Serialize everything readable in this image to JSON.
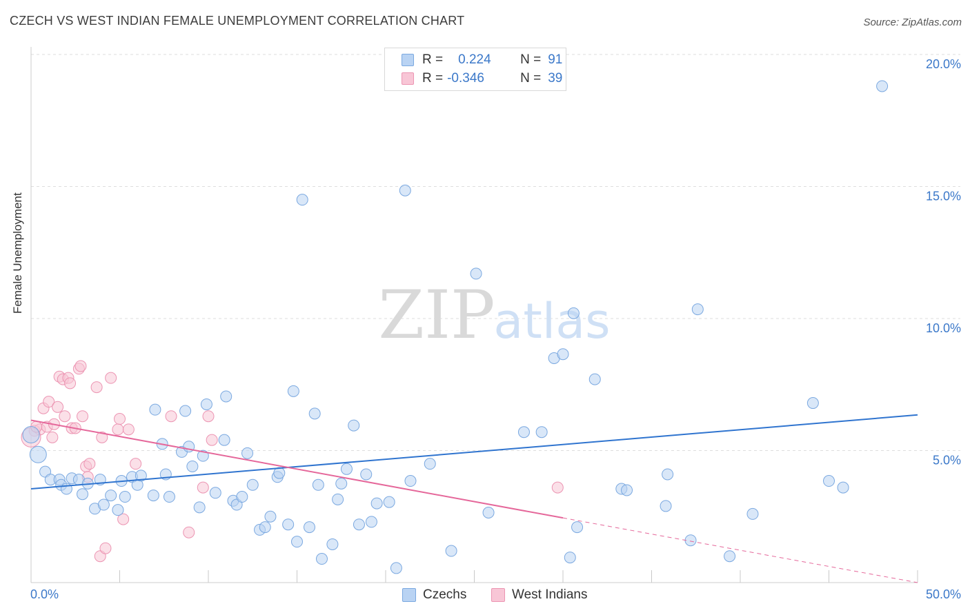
{
  "title": "CZECH VS WEST INDIAN FEMALE UNEMPLOYMENT CORRELATION CHART",
  "source": "Source: ZipAtlas.com",
  "watermark": {
    "zip": "ZIP",
    "atlas": "atlas"
  },
  "legend_top": {
    "czechs": {
      "r_label": "R =",
      "r_value": "0.224",
      "n_label": "N =",
      "n_value": "91"
    },
    "west_indians": {
      "r_label": "R =",
      "r_value": "-0.346",
      "n_label": "N =",
      "n_value": "39"
    }
  },
  "legend_bottom": {
    "czechs": "Czechs",
    "west_indians": "West Indians"
  },
  "x_axis": {
    "min_label": "0.0%",
    "max_label": "50.0%"
  },
  "colors": {
    "czech_fill": "#b9d3f3",
    "czech_stroke": "#7aa8e0",
    "czech_line": "#2f74cf",
    "wi_fill": "#f8c6d6",
    "wi_stroke": "#ec94b2",
    "wi_line": "#e5679a",
    "tick_text": "#3b78c9",
    "grid": "#dddddd"
  },
  "chart_data": {
    "type": "scatter",
    "title": "CZECH VS WEST INDIAN FEMALE UNEMPLOYMENT CORRELATION CHART",
    "xlabel": "",
    "ylabel": "Female Unemployment",
    "xlim": [
      0,
      50
    ],
    "ylim": [
      0,
      20
    ],
    "yticks": [
      5,
      10,
      15,
      20
    ],
    "ytick_labels": [
      "5.0%",
      "10.0%",
      "15.0%",
      "20.0%"
    ],
    "grid": true,
    "series": [
      {
        "name": "Czechs",
        "r": 0.224,
        "n": 91,
        "trend": {
          "x": [
            0,
            50
          ],
          "y": [
            3.55,
            6.35
          ]
        },
        "points": [
          [
            0.4,
            4.85
          ],
          [
            0.8,
            4.2
          ],
          [
            1.1,
            3.9
          ],
          [
            1.6,
            3.9
          ],
          [
            1.7,
            3.7
          ],
          [
            2.0,
            3.55
          ],
          [
            2.3,
            3.95
          ],
          [
            2.7,
            3.9
          ],
          [
            2.9,
            3.35
          ],
          [
            3.2,
            3.75
          ],
          [
            3.6,
            2.8
          ],
          [
            3.9,
            3.9
          ],
          [
            4.1,
            2.95
          ],
          [
            4.5,
            3.3
          ],
          [
            4.9,
            2.75
          ],
          [
            5.1,
            3.85
          ],
          [
            5.3,
            3.25
          ],
          [
            5.7,
            4.0
          ],
          [
            6.0,
            3.7
          ],
          [
            6.2,
            4.05
          ],
          [
            6.9,
            3.3
          ],
          [
            7.0,
            6.55
          ],
          [
            7.4,
            5.25
          ],
          [
            7.6,
            4.1
          ],
          [
            7.8,
            3.25
          ],
          [
            8.5,
            4.95
          ],
          [
            8.7,
            6.5
          ],
          [
            8.9,
            5.15
          ],
          [
            9.1,
            4.4
          ],
          [
            9.5,
            2.85
          ],
          [
            9.7,
            4.8
          ],
          [
            9.9,
            6.75
          ],
          [
            10.4,
            3.4
          ],
          [
            10.9,
            5.4
          ],
          [
            11.0,
            7.05
          ],
          [
            11.4,
            3.1
          ],
          [
            11.6,
            2.95
          ],
          [
            11.9,
            3.25
          ],
          [
            12.2,
            4.9
          ],
          [
            12.5,
            3.7
          ],
          [
            12.9,
            2.0
          ],
          [
            13.2,
            2.1
          ],
          [
            13.5,
            2.5
          ],
          [
            13.9,
            4.0
          ],
          [
            14.0,
            4.15
          ],
          [
            14.5,
            2.2
          ],
          [
            14.8,
            7.25
          ],
          [
            15.0,
            1.55
          ],
          [
            15.3,
            14.5
          ],
          [
            15.7,
            2.1
          ],
          [
            16.0,
            6.4
          ],
          [
            16.2,
            3.7
          ],
          [
            16.4,
            0.9
          ],
          [
            17.0,
            1.45
          ],
          [
            17.3,
            3.15
          ],
          [
            17.5,
            3.75
          ],
          [
            17.8,
            4.3
          ],
          [
            18.2,
            5.95
          ],
          [
            18.5,
            2.2
          ],
          [
            18.9,
            4.1
          ],
          [
            19.2,
            2.3
          ],
          [
            19.5,
            3.0
          ],
          [
            20.2,
            3.05
          ],
          [
            20.6,
            0.55
          ],
          [
            21.1,
            14.85
          ],
          [
            21.4,
            3.85
          ],
          [
            22.5,
            4.5
          ],
          [
            23.7,
            1.2
          ],
          [
            25.1,
            11.7
          ],
          [
            25.8,
            2.65
          ],
          [
            27.8,
            5.7
          ],
          [
            28.8,
            5.7
          ],
          [
            29.5,
            8.5
          ],
          [
            30.0,
            8.65
          ],
          [
            30.4,
            0.95
          ],
          [
            30.6,
            10.2
          ],
          [
            30.8,
            2.1
          ],
          [
            31.8,
            7.7
          ],
          [
            33.3,
            3.55
          ],
          [
            33.6,
            3.5
          ],
          [
            35.8,
            2.9
          ],
          [
            35.9,
            4.1
          ],
          [
            37.2,
            1.6
          ],
          [
            37.6,
            10.35
          ],
          [
            39.4,
            1.0
          ],
          [
            40.7,
            2.6
          ],
          [
            44.1,
            6.8
          ],
          [
            45.0,
            3.85
          ],
          [
            45.8,
            3.6
          ],
          [
            48.0,
            18.8
          ],
          [
            0.0,
            5.6
          ]
        ]
      },
      {
        "name": "West Indians",
        "r": -0.346,
        "n": 39,
        "trend": {
          "x": [
            0,
            30
          ],
          "y": [
            6.15,
            2.45
          ]
        },
        "trend_dashed": {
          "x": [
            30,
            50
          ],
          "y": [
            2.45,
            0.0
          ]
        },
        "points": [
          [
            0.2,
            5.75
          ],
          [
            0.5,
            5.8
          ],
          [
            0.7,
            6.6
          ],
          [
            0.9,
            5.9
          ],
          [
            1.0,
            6.85
          ],
          [
            1.2,
            5.5
          ],
          [
            1.3,
            6.0
          ],
          [
            1.5,
            6.65
          ],
          [
            1.6,
            7.8
          ],
          [
            1.8,
            7.7
          ],
          [
            1.9,
            6.3
          ],
          [
            2.1,
            7.75
          ],
          [
            2.2,
            7.55
          ],
          [
            2.3,
            5.85
          ],
          [
            2.5,
            5.85
          ],
          [
            2.7,
            8.1
          ],
          [
            2.8,
            8.2
          ],
          [
            2.9,
            6.3
          ],
          [
            3.1,
            4.4
          ],
          [
            3.2,
            4.0
          ],
          [
            3.3,
            4.5
          ],
          [
            3.7,
            7.4
          ],
          [
            3.9,
            1.0
          ],
          [
            4.0,
            5.5
          ],
          [
            4.2,
            1.3
          ],
          [
            4.5,
            7.75
          ],
          [
            4.9,
            5.8
          ],
          [
            5.0,
            6.2
          ],
          [
            5.2,
            2.4
          ],
          [
            5.5,
            5.8
          ],
          [
            5.9,
            4.5
          ],
          [
            7.9,
            6.3
          ],
          [
            8.9,
            1.9
          ],
          [
            9.7,
            3.6
          ],
          [
            10.0,
            6.3
          ],
          [
            10.2,
            5.4
          ],
          [
            29.7,
            3.6
          ],
          [
            0.0,
            5.5
          ],
          [
            0.3,
            5.9
          ]
        ]
      }
    ]
  }
}
